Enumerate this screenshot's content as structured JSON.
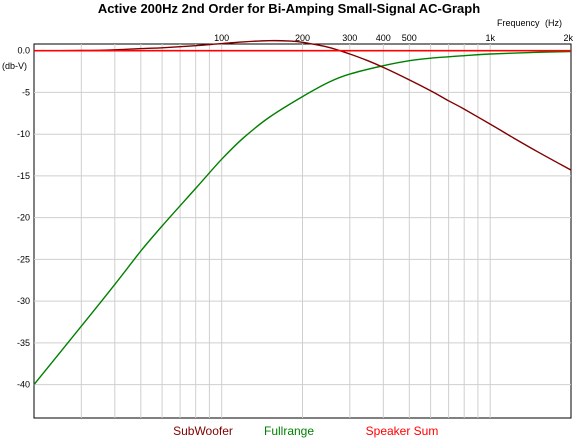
{
  "chart_data": {
    "type": "line",
    "title": "Active 200Hz 2nd Order for Bi-Amping Small-Signal AC-Graph",
    "xlabel": "Frequency",
    "xunit": "(Hz)",
    "ylabel": "(db-V)",
    "x_scale": "log",
    "xlim": [
      20,
      2000
    ],
    "ylim": [
      -44,
      0.8
    ],
    "x_tick_values": [
      100,
      200,
      300,
      400,
      500,
      1000,
      2000
    ],
    "x_tick_labels": [
      "100",
      "200",
      "300",
      "400",
      "500",
      "1k",
      "2k"
    ],
    "y_tick_values": [
      0,
      -5,
      -10,
      -15,
      -20,
      -25,
      -30,
      -35,
      -40
    ],
    "y_tick_labels": [
      "0.0",
      "-5",
      "-10",
      "-15",
      "-20",
      "-25",
      "-30",
      "-35",
      "-40"
    ],
    "grid": true,
    "legend_position": "bottom",
    "series": [
      {
        "name": "SubWoofer",
        "color": "#800000",
        "x": [
          20,
          30,
          40,
          50,
          60,
          80,
          100,
          120,
          150,
          180,
          200,
          250,
          300,
          350,
          400,
          500,
          600,
          700,
          800,
          1000,
          1200,
          1500,
          2000
        ],
        "y": [
          0.0,
          0.02,
          0.1,
          0.25,
          0.35,
          0.6,
          0.85,
          1.05,
          1.2,
          1.15,
          1.0,
          0.4,
          -0.4,
          -1.2,
          -2.0,
          -3.5,
          -4.8,
          -6.0,
          -7.0,
          -8.8,
          -10.3,
          -12.1,
          -14.3
        ]
      },
      {
        "name": "Fullrange",
        "color": "#008000",
        "x": [
          20,
          30,
          40,
          50,
          60,
          80,
          100,
          120,
          150,
          200,
          250,
          300,
          400,
          500,
          600,
          800,
          1000,
          1500,
          2000
        ],
        "y": [
          -40.0,
          -33.0,
          -28.0,
          -24.0,
          -21.0,
          -16.5,
          -13.0,
          -10.5,
          -8.0,
          -5.5,
          -3.8,
          -2.8,
          -1.8,
          -1.2,
          -0.9,
          -0.6,
          -0.4,
          -0.2,
          -0.1
        ]
      },
      {
        "name": "Speaker Sum",
        "color": "#ff0000",
        "x": [
          20,
          2000
        ],
        "y": [
          0.0,
          0.0
        ]
      }
    ]
  }
}
